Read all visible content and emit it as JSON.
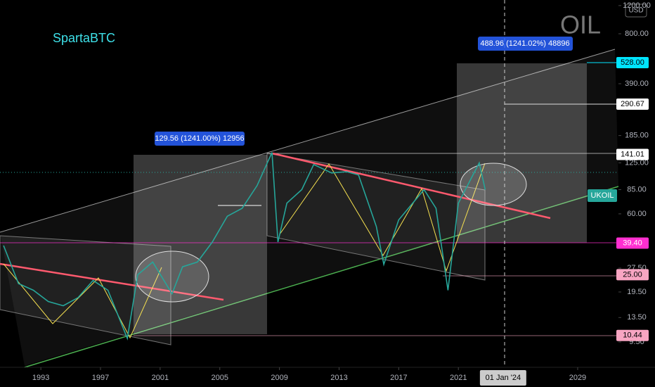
{
  "chart_data": {
    "type": "line",
    "symbol": "OIL",
    "author": "SpartaBTC",
    "currency": "USD",
    "ticker_label": {
      "label": "UKOIL",
      "value": 78
    },
    "measure_labels": [
      "129.56 (1241.00%) 12956",
      "488.96 (1241.02%) 48896"
    ],
    "crosshair": {
      "label": "01 Jan '24",
      "value": 2024.0
    },
    "x": [
      1990.5,
      1991.5,
      1992.5,
      1993.5,
      1994.5,
      1995.5,
      1996.5,
      1997.5,
      1998.8,
      1999.5,
      2000.5,
      2001.8,
      2002.5,
      2003.5,
      2004.5,
      2005.5,
      2006.5,
      2007.5,
      2008.5,
      2008.9,
      2009.5,
      2010.5,
      2011.3,
      2012.5,
      2013.5,
      2014.3,
      2015.5,
      2016.0,
      2017.0,
      2018.7,
      2019.5,
      2020.3,
      2021.0,
      2022.4,
      2022.8
    ],
    "series": [
      {
        "name": "UKOIL",
        "color": "#26a69a",
        "values": [
          38,
          22,
          20,
          17,
          16,
          18,
          23,
          20,
          10,
          25,
          30,
          19,
          28,
          30,
          40,
          58,
          65,
          90,
          145,
          40,
          70,
          85,
          122,
          108,
          110,
          105,
          50,
          29,
          55,
          85,
          65,
          20,
          70,
          125,
          85
        ]
      }
    ],
    "xlim": [
      1990.26,
      2031.5
    ],
    "xticks": [
      1993,
      1997,
      2001,
      2005,
      2009,
      2013,
      2017,
      2021,
      2029
    ],
    "ylim": [
      6.6,
      1300
    ],
    "log_scale": true,
    "yticks": [
      {
        "value": 1200,
        "label": "1200.00"
      },
      {
        "value": 800,
        "label": "800.00"
      },
      {
        "value": 390,
        "label": "390.00"
      },
      {
        "value": 185,
        "label": "185.00"
      },
      {
        "value": 125,
        "label": "125.00"
      },
      {
        "value": 85,
        "label": "85.00"
      },
      {
        "value": 60,
        "label": "60.00"
      },
      {
        "value": 27.5,
        "label": "27.50"
      },
      {
        "value": 19.5,
        "label": "19.50"
      },
      {
        "value": 13.5,
        "label": "13.50"
      },
      {
        "value": 9.5,
        "label": "9.50"
      }
    ],
    "price_labels": [
      {
        "value": 528,
        "label": "528.00",
        "color": "#00e5ff",
        "text_color": "#000"
      },
      {
        "value": 290.67,
        "label": "290.67",
        "color": "#ffffff",
        "text_color": "#000"
      },
      {
        "value": 141.01,
        "label": "141.01",
        "color": "#ffffff",
        "text_color": "#000"
      },
      {
        "value": 39.4,
        "label": "39.40",
        "color": "#ff2fd0",
        "text_color": "#fff"
      },
      {
        "value": 25,
        "label": "25.00",
        "color": "#f8a5c2",
        "text_color": "#000"
      },
      {
        "value": 10.44,
        "label": "10.44",
        "color": "#f8a5c2",
        "text_color": "#000"
      }
    ]
  }
}
